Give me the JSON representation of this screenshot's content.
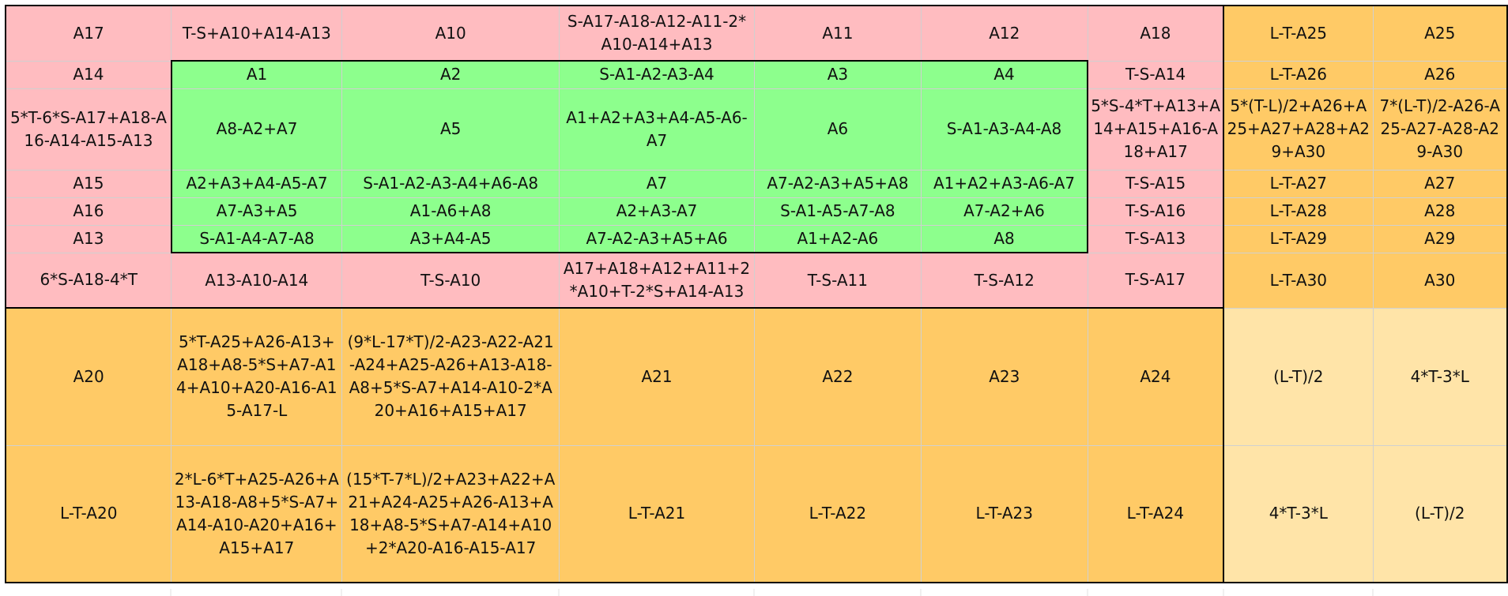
{
  "grid": {
    "rows": [
      [
        {
          "t": "A17",
          "c": "pink"
        },
        {
          "t": "T-S+A10+A14-A13",
          "c": "pink"
        },
        {
          "t": "A10",
          "c": "pink"
        },
        {
          "t": "S-A17-A18-A12-A11-2*A10-A14+A13",
          "c": "pink"
        },
        {
          "t": "A11",
          "c": "pink"
        },
        {
          "t": "A12",
          "c": "pink"
        },
        {
          "t": "A18",
          "c": "pink"
        },
        {
          "t": "L-T-A25",
          "c": "orange"
        },
        {
          "t": "A25",
          "c": "orange"
        }
      ],
      [
        {
          "t": "A14",
          "c": "pink"
        },
        {
          "t": "A1",
          "c": "green"
        },
        {
          "t": "A2",
          "c": "green"
        },
        {
          "t": "S-A1-A2-A3-A4",
          "c": "green"
        },
        {
          "t": "A3",
          "c": "green"
        },
        {
          "t": "A4",
          "c": "green"
        },
        {
          "t": "T-S-A14",
          "c": "pink"
        },
        {
          "t": "L-T-A26",
          "c": "orange"
        },
        {
          "t": "A26",
          "c": "orange"
        }
      ],
      [
        {
          "t": "5*T-6*S-A17+A18-A16-A14-A15-A13",
          "c": "pink"
        },
        {
          "t": "A8-A2+A7",
          "c": "green"
        },
        {
          "t": "A5",
          "c": "green"
        },
        {
          "t": "A1+A2+A3+A4-A5-A6-A7",
          "c": "green"
        },
        {
          "t": "A6",
          "c": "green"
        },
        {
          "t": "S-A1-A3-A4-A8",
          "c": "green"
        },
        {
          "t": "5*S-4*T+A13+A14+A15+A16-A18+A17",
          "c": "pink"
        },
        {
          "t": "5*(T-L)/2+A26+A25+A27+A28+A29+A30",
          "c": "orange"
        },
        {
          "t": "7*(L-T)/2-A26-A25-A27-A28-A29-A30",
          "c": "orange"
        }
      ],
      [
        {
          "t": "A15",
          "c": "pink"
        },
        {
          "t": "A2+A3+A4-A5-A7",
          "c": "green"
        },
        {
          "t": "S-A1-A2-A3-A4+A6-A8",
          "c": "green"
        },
        {
          "t": "A7",
          "c": "green"
        },
        {
          "t": "A7-A2-A3+A5+A8",
          "c": "green"
        },
        {
          "t": "A1+A2+A3-A6-A7",
          "c": "green"
        },
        {
          "t": "T-S-A15",
          "c": "pink"
        },
        {
          "t": "L-T-A27",
          "c": "orange"
        },
        {
          "t": "A27",
          "c": "orange"
        }
      ],
      [
        {
          "t": "A16",
          "c": "pink"
        },
        {
          "t": "A7-A3+A5",
          "c": "green"
        },
        {
          "t": "A1-A6+A8",
          "c": "green"
        },
        {
          "t": "A2+A3-A7",
          "c": "green"
        },
        {
          "t": "S-A1-A5-A7-A8",
          "c": "green"
        },
        {
          "t": "A7-A2+A6",
          "c": "green"
        },
        {
          "t": "T-S-A16",
          "c": "pink"
        },
        {
          "t": "L-T-A28",
          "c": "orange"
        },
        {
          "t": "A28",
          "c": "orange"
        }
      ],
      [
        {
          "t": "A13",
          "c": "pink"
        },
        {
          "t": "S-A1-A4-A7-A8",
          "c": "green"
        },
        {
          "t": "A3+A4-A5",
          "c": "green"
        },
        {
          "t": "A7-A2-A3+A5+A6",
          "c": "green"
        },
        {
          "t": "A1+A2-A6",
          "c": "green"
        },
        {
          "t": "A8",
          "c": "green"
        },
        {
          "t": "T-S-A13",
          "c": "pink"
        },
        {
          "t": "L-T-A29",
          "c": "orange"
        },
        {
          "t": "A29",
          "c": "orange"
        }
      ],
      [
        {
          "t": "6*S-A18-4*T",
          "c": "pink"
        },
        {
          "t": "A13-A10-A14",
          "c": "pink"
        },
        {
          "t": "T-S-A10",
          "c": "pink"
        },
        {
          "t": "A17+A18+A12+A11+2*A10+T-2*S+A14-A13",
          "c": "pink"
        },
        {
          "t": "T-S-A11",
          "c": "pink"
        },
        {
          "t": "T-S-A12",
          "c": "pink"
        },
        {
          "t": "T-S-A17",
          "c": "pink"
        },
        {
          "t": "L-T-A30",
          "c": "orange"
        },
        {
          "t": "A30",
          "c": "orange"
        }
      ],
      [
        {
          "t": "A20",
          "c": "orange"
        },
        {
          "t": "5*T-A25+A26-A13+A18+A8-5*S+A7-A14+A10+A20-A16-A15-A17-L",
          "c": "orange"
        },
        {
          "t": "(9*L-17*T)/2-A23-A22-A21-A24+A25-A26+A13-A18-A8+5*S-A7+A14-A10-2*A20+A16+A15+A17",
          "c": "orange"
        },
        {
          "t": "A21",
          "c": "orange"
        },
        {
          "t": "A22",
          "c": "orange"
        },
        {
          "t": "A23",
          "c": "orange"
        },
        {
          "t": "A24",
          "c": "orange"
        },
        {
          "t": "(L-T)/2",
          "c": "cream"
        },
        {
          "t": "4*T-3*L",
          "c": "cream"
        }
      ],
      [
        {
          "t": "L-T-A20",
          "c": "orange"
        },
        {
          "t": "2*L-6*T+A25-A26+A13-A18-A8+5*S-A7+A14-A10-A20+A16+A15+A17",
          "c": "orange"
        },
        {
          "t": "(15*T-7*L)/2+A23+A22+A21+A24-A25+A26-A13+A18+A8-5*S+A7-A14+A10+2*A20-A16-A15-A17",
          "c": "orange"
        },
        {
          "t": "L-T-A21",
          "c": "orange"
        },
        {
          "t": "L-T-A22",
          "c": "orange"
        },
        {
          "t": "L-T-A23",
          "c": "orange"
        },
        {
          "t": "L-T-A24",
          "c": "orange"
        },
        {
          "t": "4*T-3*L",
          "c": "cream"
        },
        {
          "t": "(L-T)/2",
          "c": "cream"
        }
      ]
    ]
  },
  "colors": {
    "pink": "#ffbcc0",
    "green": "#8dff8d",
    "orange": "#ffca66",
    "cream": "#ffe4a8",
    "border": "#000000"
  }
}
